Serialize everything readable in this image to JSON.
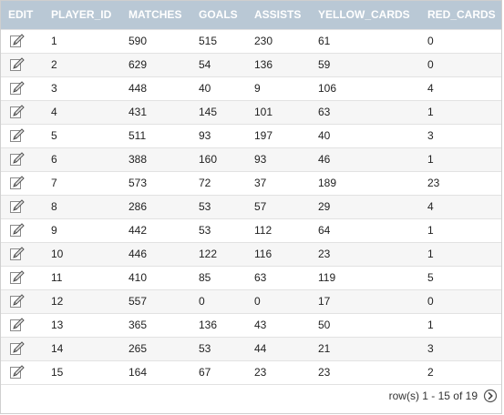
{
  "table": {
    "columns": [
      "EDIT",
      "PLAYER_ID",
      "MATCHES",
      "GOALS",
      "ASSISTS",
      "YELLOW_CARDS",
      "RED_CARDS"
    ],
    "rows": [
      [
        "1",
        "590",
        "515",
        "230",
        "61",
        "0"
      ],
      [
        "2",
        "629",
        "54",
        "136",
        "59",
        "0"
      ],
      [
        "3",
        "448",
        "40",
        "9",
        "106",
        "4"
      ],
      [
        "4",
        "431",
        "145",
        "101",
        "63",
        "1"
      ],
      [
        "5",
        "511",
        "93",
        "197",
        "40",
        "3"
      ],
      [
        "6",
        "388",
        "160",
        "93",
        "46",
        "1"
      ],
      [
        "7",
        "573",
        "72",
        "37",
        "189",
        "23"
      ],
      [
        "8",
        "286",
        "53",
        "57",
        "29",
        "4"
      ],
      [
        "9",
        "442",
        "53",
        "112",
        "64",
        "1"
      ],
      [
        "10",
        "446",
        "122",
        "116",
        "23",
        "1"
      ],
      [
        "11",
        "410",
        "85",
        "63",
        "119",
        "5"
      ],
      [
        "12",
        "557",
        "0",
        "0",
        "17",
        "0"
      ],
      [
        "13",
        "365",
        "136",
        "43",
        "50",
        "1"
      ],
      [
        "14",
        "265",
        "53",
        "44",
        "21",
        "3"
      ],
      [
        "15",
        "164",
        "67",
        "23",
        "23",
        "2"
      ]
    ],
    "row_icon": "edit-pencil-icon"
  },
  "pagination": {
    "label": "row(s) 1 - 15 of 19",
    "next_icon": "next-page-icon"
  }
}
